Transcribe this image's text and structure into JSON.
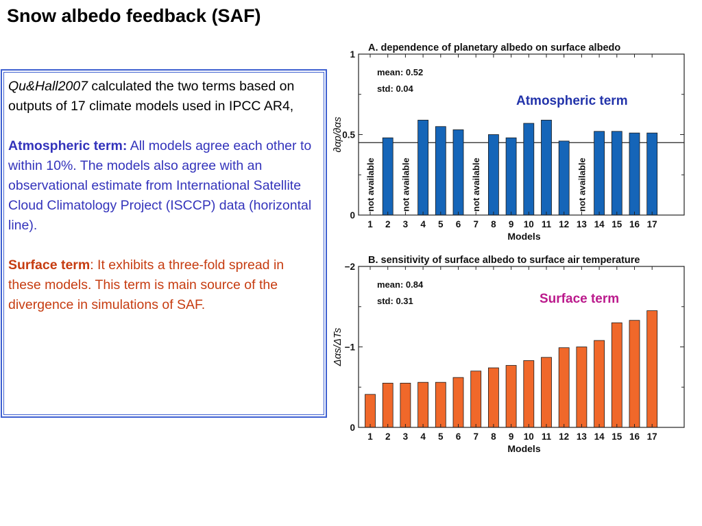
{
  "page": {
    "title": "Snow albedo feedback (SAF)",
    "intro_italic": "Qu&Hall2007",
    "intro_rest": " calculated the two terms based on outputs of 17 climate models used in IPCC AR4,",
    "atm_heading": "Atmospheric term:",
    "atm_body": " All models agree each other to within 10%.  The models also agree with an observational estimate from International Satellite Cloud Climatology Project (ISCCP) data (horizontal line).",
    "surf_heading": "Surface term",
    "surf_body": ": It exhibits a three-fold spread in these models. This term is main source of the divergence in simulations of SAF."
  },
  "callouts": {
    "atmospheric": "Atmospheric term",
    "surface": "Surface term"
  },
  "colors": {
    "bar_a": "#1565b8",
    "bar_b": "#f0682a",
    "callout_a": "#2233aa",
    "callout_b": "#bb1a8c"
  },
  "chart_data": [
    {
      "type": "bar",
      "title": "A. dependence of planetary albedo on surface albedo",
      "xlabel": "Models",
      "ylabel": "∂αp/∂αs",
      "categories": [
        "1",
        "2",
        "3",
        "4",
        "5",
        "6",
        "7",
        "8",
        "9",
        "10",
        "11",
        "12",
        "13",
        "14",
        "15",
        "16",
        "17"
      ],
      "values": [
        null,
        0.48,
        null,
        0.59,
        0.55,
        0.53,
        null,
        0.5,
        0.48,
        0.57,
        0.59,
        0.46,
        null,
        0.52,
        0.52,
        0.51,
        0.51
      ],
      "missing_label": "not available",
      "ylim": [
        0,
        1
      ],
      "yticks": [
        0,
        0.5,
        1
      ],
      "ytick_labels": [
        "0",
        "0.5",
        "1"
      ],
      "reference_line": 0.45,
      "stats": [
        "mean: 0.52",
        "std: 0.04"
      ],
      "bar_color": "#1565b8"
    },
    {
      "type": "bar",
      "title": "B. sensitivity of surface albedo to surface air temperature",
      "xlabel": "Models",
      "ylabel": "Δαs/ΔTs",
      "categories": [
        "1",
        "2",
        "3",
        "4",
        "5",
        "6",
        "7",
        "8",
        "9",
        "10",
        "11",
        "12",
        "13",
        "14",
        "15",
        "16",
        "17"
      ],
      "values": [
        -0.41,
        -0.55,
        -0.55,
        -0.56,
        -0.56,
        -0.62,
        -0.7,
        -0.74,
        -0.77,
        -0.83,
        -0.87,
        -0.99,
        -1.0,
        -1.08,
        -1.3,
        -1.33,
        -1.45
      ],
      "ylim": [
        0,
        -2
      ],
      "yticks": [
        0,
        -1,
        -2
      ],
      "ytick_labels": [
        "0",
        "−1",
        "−2"
      ],
      "stats": [
        "mean: 0.84",
        "std: 0.31"
      ],
      "bar_color": "#f0682a"
    }
  ]
}
